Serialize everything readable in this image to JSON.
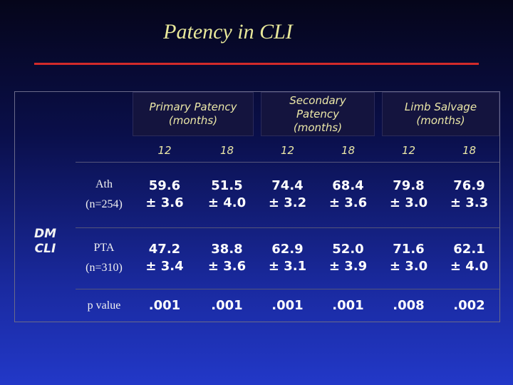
{
  "title": "Patency in CLI",
  "headers": {
    "primary": "Primary Patency (months)",
    "secondary_l1": "Secondary",
    "secondary_l2": "Patency",
    "secondary_l3": "(months)",
    "limb": "Limb Salvage (months)"
  },
  "months": [
    "12",
    "18",
    "12",
    "18",
    "12",
    "18"
  ],
  "group_label_l1": "DM",
  "group_label_l2": "CLI",
  "rows": [
    {
      "label_l1": "Ath",
      "label_l2": "(n=254)",
      "cells": [
        [
          "59.6",
          "± 3.6"
        ],
        [
          "51.5",
          "± 4.0"
        ],
        [
          "74.4",
          "± 3.2"
        ],
        [
          "68.4",
          "± 3.6"
        ],
        [
          "79.8",
          "± 3.0"
        ],
        [
          "76.9",
          "± 3.3"
        ]
      ]
    },
    {
      "label_l1": "PTA",
      "label_l2": "(n=310)",
      "cells": [
        [
          "47.2",
          "± 3.4"
        ],
        [
          "38.8",
          "± 3.6"
        ],
        [
          "62.9",
          "± 3.1"
        ],
        [
          "52.0",
          "± 3.9"
        ],
        [
          "71.6",
          "± 3.0"
        ],
        [
          "62.1",
          "± 4.0"
        ]
      ]
    }
  ],
  "pvalue_label": "p value",
  "pvalues": [
    ".001",
    ".001",
    ".001",
    ".001",
    ".008",
    ".002"
  ]
}
